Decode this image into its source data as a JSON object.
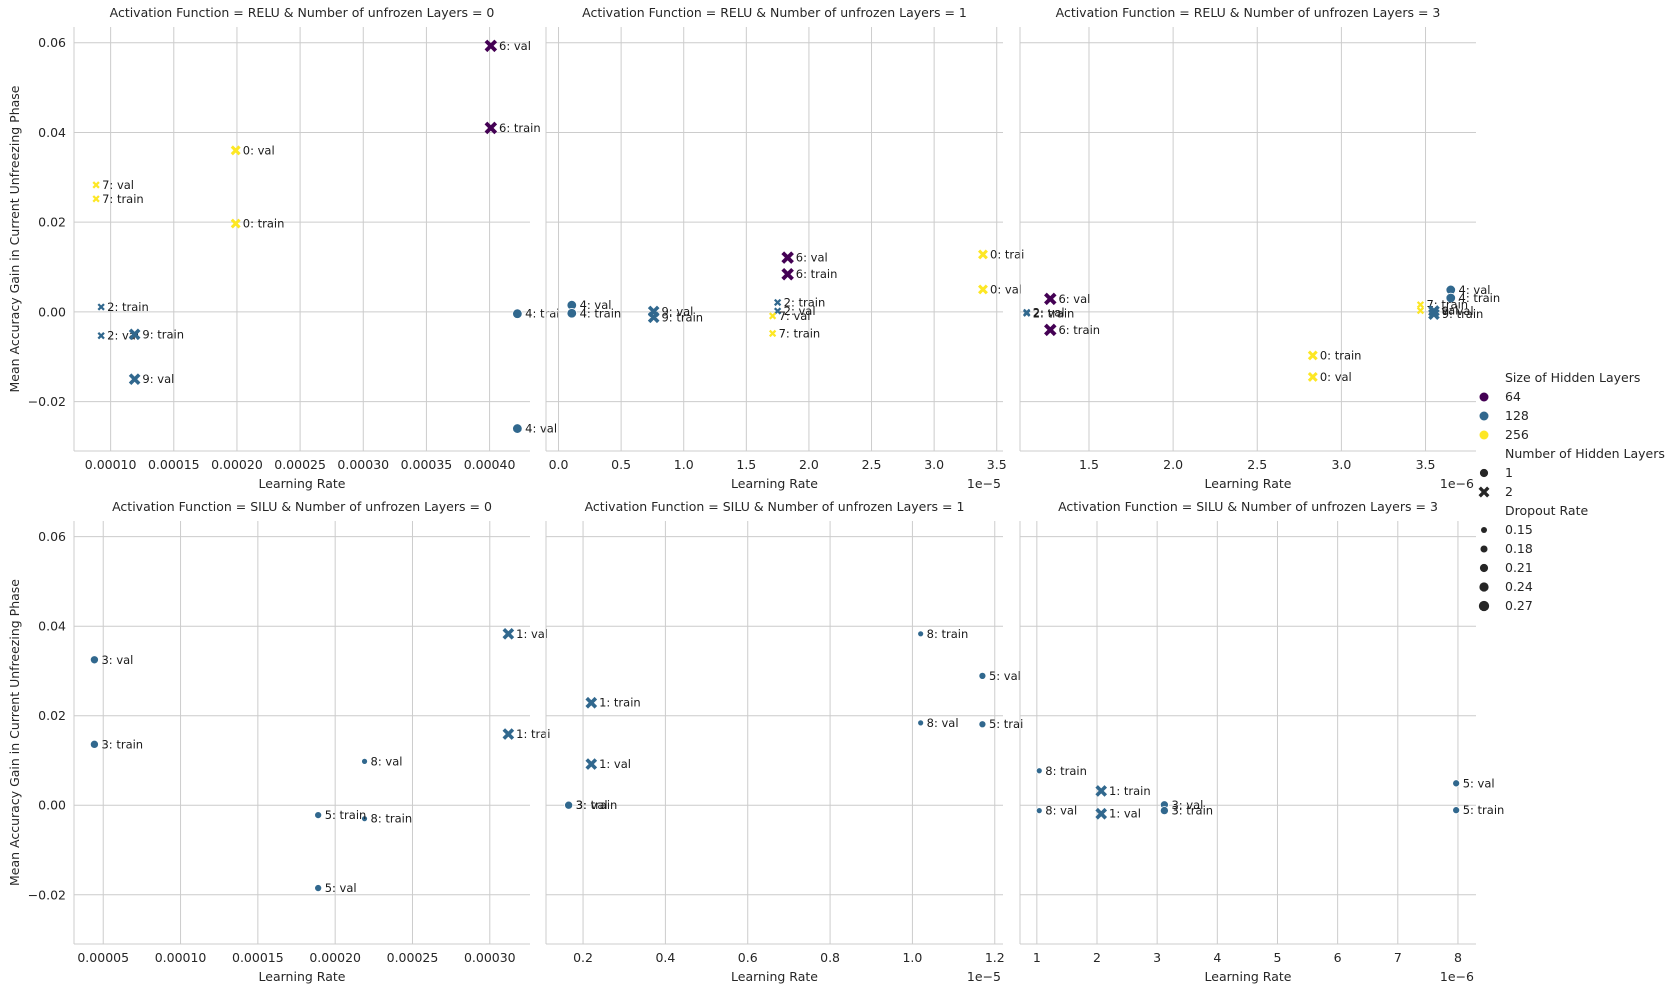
{
  "chart_data": {
    "type": "scatter",
    "xlabel": "Learning Rate",
    "ylabel": "Mean Accuracy Gain in Current Unfreezing Phase",
    "ylim": [
      -0.031,
      0.0635
    ],
    "yticks": [
      -0.02,
      0.0,
      0.02,
      0.04,
      0.06
    ],
    "ytick_labels": [
      "−0.02",
      "0.00",
      "0.02",
      "0.04",
      "0.06"
    ],
    "grid": true,
    "colors": {
      "64": "#440154",
      "128": "#31688e",
      "256": "#fde725"
    },
    "legend": {
      "placement": "right",
      "hue_title": "Size of Hidden Layers",
      "hue_entries": [
        {
          "label": "64",
          "color": "#440154"
        },
        {
          "label": "128",
          "color": "#31688e"
        },
        {
          "label": "256",
          "color": "#fde725"
        }
      ],
      "style_title": "Number of Hidden Layers",
      "style_entries": [
        {
          "label": "1",
          "marker": "circle"
        },
        {
          "label": "2",
          "marker": "x"
        }
      ],
      "size_title": "Dropout Rate",
      "size_entries": [
        {
          "label": "0.15",
          "size": 0.15
        },
        {
          "label": "0.18",
          "size": 0.18
        },
        {
          "label": "0.21",
          "size": 0.21
        },
        {
          "label": "0.24",
          "size": 0.24
        },
        {
          "label": "0.27",
          "size": 0.27
        }
      ]
    },
    "panels": [
      {
        "title": "Activation Function = RELU & Number of unfrozen Layers = 0",
        "xlim": [
          7.1e-05,
          0.000432
        ],
        "offset": "",
        "xticks": [
          0.0001,
          0.00015,
          0.0002,
          0.00025,
          0.0003,
          0.00035,
          0.0004
        ],
        "xtick_labels": [
          "0.00010",
          "0.00015",
          "0.00020",
          "0.00025",
          "0.00030",
          "0.00035",
          "0.00040"
        ],
        "points": [
          {
            "x": 0.000401,
            "y": 0.0593,
            "label": "6: val",
            "hidden_size": 64,
            "layers": 2,
            "dropout": 0.27
          },
          {
            "x": 0.000401,
            "y": 0.041,
            "label": "6: train",
            "hidden_size": 64,
            "layers": 2,
            "dropout": 0.27
          },
          {
            "x": 0.000199,
            "y": 0.036,
            "label": "0: val",
            "hidden_size": 256,
            "layers": 2,
            "dropout": 0.21
          },
          {
            "x": 0.000199,
            "y": 0.0197,
            "label": "0: train",
            "hidden_size": 256,
            "layers": 2,
            "dropout": 0.21
          },
          {
            "x": 8.85e-05,
            "y": 0.0283,
            "label": "7: val",
            "hidden_size": 256,
            "layers": 2,
            "dropout": 0.15
          },
          {
            "x": 8.85e-05,
            "y": 0.0252,
            "label": "7: train",
            "hidden_size": 256,
            "layers": 2,
            "dropout": 0.15
          },
          {
            "x": 9.25e-05,
            "y": 0.0011,
            "label": "2: train",
            "hidden_size": 128,
            "layers": 2,
            "dropout": 0.15
          },
          {
            "x": 9.25e-05,
            "y": -0.0053,
            "label": "2: val",
            "hidden_size": 128,
            "layers": 2,
            "dropout": 0.15
          },
          {
            "x": 0.000119,
            "y": -0.005,
            "label": "9: train",
            "hidden_size": 128,
            "layers": 2,
            "dropout": 0.25
          },
          {
            "x": 0.000119,
            "y": -0.015,
            "label": "9: val",
            "hidden_size": 128,
            "layers": 2,
            "dropout": 0.25
          },
          {
            "x": 0.000422,
            "y": -0.0004,
            "label": "4: trai",
            "hidden_size": 128,
            "layers": 1,
            "dropout": 0.25
          },
          {
            "x": 0.000422,
            "y": -0.026,
            "label": "4: val",
            "hidden_size": 128,
            "layers": 1,
            "dropout": 0.25
          }
        ]
      },
      {
        "title": "Activation Function = RELU & Number of unfrozen Layers = 1",
        "xlim": [
          -1e-06,
          3.55e-05
        ],
        "offset": "1e−5",
        "xticks": [
          0,
          5e-06,
          1e-05,
          1.5e-05,
          2e-05,
          2.5e-05,
          3e-05,
          3.5e-05
        ],
        "xtick_labels": [
          "0.0",
          "0.5",
          "1.0",
          "1.5",
          "2.0",
          "2.5",
          "3.0",
          "3.5"
        ],
        "points": [
          {
            "x": 1.06e-06,
            "y": 0.0015,
            "label": "4: val",
            "hidden_size": 128,
            "layers": 1,
            "dropout": 0.25
          },
          {
            "x": 1.06e-06,
            "y": -0.0003,
            "label": "4: train",
            "hidden_size": 128,
            "layers": 1,
            "dropout": 0.25
          },
          {
            "x": 7.6e-06,
            "y": 0.0001,
            "label": "9: val",
            "hidden_size": 128,
            "layers": 2,
            "dropout": 0.25
          },
          {
            "x": 7.6e-06,
            "y": -0.0012,
            "label": "9: train",
            "hidden_size": 128,
            "layers": 2,
            "dropout": 0.25
          },
          {
            "x": 1.83e-05,
            "y": 0.0121,
            "label": "6: val",
            "hidden_size": 64,
            "layers": 2,
            "dropout": 0.27
          },
          {
            "x": 1.83e-05,
            "y": 0.0084,
            "label": "6: train",
            "hidden_size": 64,
            "layers": 2,
            "dropout": 0.27
          },
          {
            "x": 1.75e-05,
            "y": 0.0021,
            "label": "2: train",
            "hidden_size": 128,
            "layers": 2,
            "dropout": 0.15
          },
          {
            "x": 1.75e-05,
            "y": 0.0002,
            "label": "2: val",
            "hidden_size": 128,
            "layers": 2,
            "dropout": 0.15
          },
          {
            "x": 1.71e-05,
            "y": -0.0009,
            "label": "7: val",
            "hidden_size": 256,
            "layers": 2,
            "dropout": 0.15
          },
          {
            "x": 1.71e-05,
            "y": -0.0048,
            "label": "7: train",
            "hidden_size": 256,
            "layers": 2,
            "dropout": 0.15
          },
          {
            "x": 3.39e-05,
            "y": 0.0128,
            "label": "0: trai",
            "hidden_size": 256,
            "layers": 2,
            "dropout": 0.21
          },
          {
            "x": 3.39e-05,
            "y": 0.005,
            "label": "0: val",
            "hidden_size": 256,
            "layers": 2,
            "dropout": 0.21
          }
        ]
      },
      {
        "title": "Activation Function = RELU & Number of unfrozen Layers = 3",
        "xlim": [
          1.09e-06,
          3.8e-06
        ],
        "offset": "1e−6",
        "xticks": [
          1.5e-06,
          2e-06,
          2.5e-06,
          3e-06,
          3.5e-06
        ],
        "xtick_labels": [
          "1.5",
          "2.0",
          "2.5",
          "3.0",
          "3.5"
        ],
        "points": [
          {
            "x": 1.27e-06,
            "y": 0.0029,
            "label": "6: val",
            "hidden_size": 64,
            "layers": 2,
            "dropout": 0.27
          },
          {
            "x": 1.27e-06,
            "y": -0.004,
            "label": "6: train",
            "hidden_size": 64,
            "layers": 2,
            "dropout": 0.27
          },
          {
            "x": 1.13e-06,
            "y": -0.0001,
            "label": "2: val",
            "hidden_size": 128,
            "layers": 2,
            "dropout": 0.15
          },
          {
            "x": 1.13e-06,
            "y": -0.0003,
            "label": "2: train",
            "hidden_size": 128,
            "layers": 2,
            "dropout": 0.15
          },
          {
            "x": 2.83e-06,
            "y": -0.0097,
            "label": "0: train",
            "hidden_size": 256,
            "layers": 2,
            "dropout": 0.21
          },
          {
            "x": 2.83e-06,
            "y": -0.0145,
            "label": "0: val",
            "hidden_size": 256,
            "layers": 2,
            "dropout": 0.21
          },
          {
            "x": 3.65e-06,
            "y": 0.0049,
            "label": "4: val",
            "hidden_size": 128,
            "layers": 1,
            "dropout": 0.25
          },
          {
            "x": 3.65e-06,
            "y": 0.0031,
            "label": "4: train",
            "hidden_size": 128,
            "layers": 1,
            "dropout": 0.25
          },
          {
            "x": 3.47e-06,
            "y": 0.0016,
            "label": "7: train",
            "hidden_size": 256,
            "layers": 2,
            "dropout": 0.15
          },
          {
            "x": 3.47e-06,
            "y": 0.0003,
            "label": "7: val",
            "hidden_size": 256,
            "layers": 2,
            "dropout": 0.15
          },
          {
            "x": 3.55e-06,
            "y": 0.0002,
            "label": "9: val",
            "hidden_size": 128,
            "layers": 2,
            "dropout": 0.25
          },
          {
            "x": 3.55e-06,
            "y": -0.0005,
            "label": "9: train",
            "hidden_size": 128,
            "layers": 2,
            "dropout": 0.25
          }
        ]
      },
      {
        "title": "Activation Function = SILU & Number of unfrozen Layers = 0",
        "xlim": [
          3.11e-05,
          0.000326
        ],
        "offset": "",
        "xticks": [
          5e-05,
          0.0001,
          0.00015,
          0.0002,
          0.00025,
          0.0003
        ],
        "xtick_labels": [
          "0.00005",
          "0.00010",
          "0.00015",
          "0.00020",
          "0.00025",
          "0.00030"
        ],
        "points": [
          {
            "x": 4.43e-05,
            "y": 0.0325,
            "label": "3: val",
            "hidden_size": 128,
            "layers": 1,
            "dropout": 0.21
          },
          {
            "x": 4.43e-05,
            "y": 0.0136,
            "label": "3: train",
            "hidden_size": 128,
            "layers": 1,
            "dropout": 0.21
          },
          {
            "x": 0.000312,
            "y": 0.0383,
            "label": "1: val",
            "hidden_size": 128,
            "layers": 2,
            "dropout": 0.25
          },
          {
            "x": 0.000312,
            "y": 0.0159,
            "label": "1: trai",
            "hidden_size": 128,
            "layers": 2,
            "dropout": 0.25
          },
          {
            "x": 0.000219,
            "y": 0.0098,
            "label": "8: val",
            "hidden_size": 128,
            "layers": 1,
            "dropout": 0.15
          },
          {
            "x": 0.000219,
            "y": -0.003,
            "label": "8: train",
            "hidden_size": 128,
            "layers": 1,
            "dropout": 0.15
          },
          {
            "x": 0.000189,
            "y": -0.0022,
            "label": "5: train",
            "hidden_size": 128,
            "layers": 1,
            "dropout": 0.18
          },
          {
            "x": 0.000189,
            "y": -0.0185,
            "label": "5: val",
            "hidden_size": 128,
            "layers": 1,
            "dropout": 0.18
          }
        ]
      },
      {
        "title": "Activation Function = SILU & Number of unfrozen Layers = 1",
        "xlim": [
          1.1e-06,
          1.22e-05
        ],
        "offset": "1e−5",
        "xticks": [
          2e-06,
          4e-06,
          6e-06,
          8e-06,
          1e-05,
          1.2e-05
        ],
        "xtick_labels": [
          "0.2",
          "0.4",
          "0.6",
          "0.8",
          "1.0",
          "1.2"
        ],
        "points": [
          {
            "x": 1.65e-06,
            "y": 0.0001,
            "label": "3: val",
            "hidden_size": 128,
            "layers": 1,
            "dropout": 0.21
          },
          {
            "x": 1.65e-06,
            "y": 0.0,
            "label": "3: train",
            "hidden_size": 128,
            "layers": 1,
            "dropout": 0.21
          },
          {
            "x": 2.2e-06,
            "y": 0.0229,
            "label": "1: train",
            "hidden_size": 128,
            "layers": 2,
            "dropout": 0.25
          },
          {
            "x": 2.2e-06,
            "y": 0.0092,
            "label": "1: val",
            "hidden_size": 128,
            "layers": 2,
            "dropout": 0.25
          },
          {
            "x": 1.02e-05,
            "y": 0.0383,
            "label": "8: train",
            "hidden_size": 128,
            "layers": 1,
            "dropout": 0.15
          },
          {
            "x": 1.02e-05,
            "y": 0.0184,
            "label": "8: val",
            "hidden_size": 128,
            "layers": 1,
            "dropout": 0.15
          },
          {
            "x": 1.17e-05,
            "y": 0.0289,
            "label": "5: val",
            "hidden_size": 128,
            "layers": 1,
            "dropout": 0.18
          },
          {
            "x": 1.17e-05,
            "y": 0.0181,
            "label": "5: trai",
            "hidden_size": 128,
            "layers": 1,
            "dropout": 0.18
          }
        ]
      },
      {
        "title": "Activation Function = SILU & Number of unfrozen Layers = 3",
        "xlim": [
          7.2e-07,
          8.3e-06
        ],
        "offset": "1e−6",
        "xticks": [
          1e-06,
          2e-06,
          3e-06,
          4e-06,
          5e-06,
          6e-06,
          7e-06,
          8e-06
        ],
        "xtick_labels": [
          "1",
          "2",
          "3",
          "4",
          "5",
          "6",
          "7",
          "8"
        ],
        "points": [
          {
            "x": 1.04e-06,
            "y": 0.0077,
            "label": "8: train",
            "hidden_size": 128,
            "layers": 1,
            "dropout": 0.15
          },
          {
            "x": 1.04e-06,
            "y": -0.0012,
            "label": "8: val",
            "hidden_size": 128,
            "layers": 1,
            "dropout": 0.15
          },
          {
            "x": 2.07e-06,
            "y": 0.0032,
            "label": "1: train",
            "hidden_size": 128,
            "layers": 2,
            "dropout": 0.25
          },
          {
            "x": 2.07e-06,
            "y": -0.0019,
            "label": "1: val",
            "hidden_size": 128,
            "layers": 2,
            "dropout": 0.25
          },
          {
            "x": 3.12e-06,
            "y": 0.0001,
            "label": "3: val",
            "hidden_size": 128,
            "layers": 1,
            "dropout": 0.21
          },
          {
            "x": 3.12e-06,
            "y": -0.0012,
            "label": "3: train",
            "hidden_size": 128,
            "layers": 1,
            "dropout": 0.21
          },
          {
            "x": 7.97e-06,
            "y": 0.0049,
            "label": "5: val",
            "hidden_size": 128,
            "layers": 1,
            "dropout": 0.18
          },
          {
            "x": 7.97e-06,
            "y": -0.0011,
            "label": "5: train",
            "hidden_size": 128,
            "layers": 1,
            "dropout": 0.18
          }
        ]
      }
    ]
  }
}
